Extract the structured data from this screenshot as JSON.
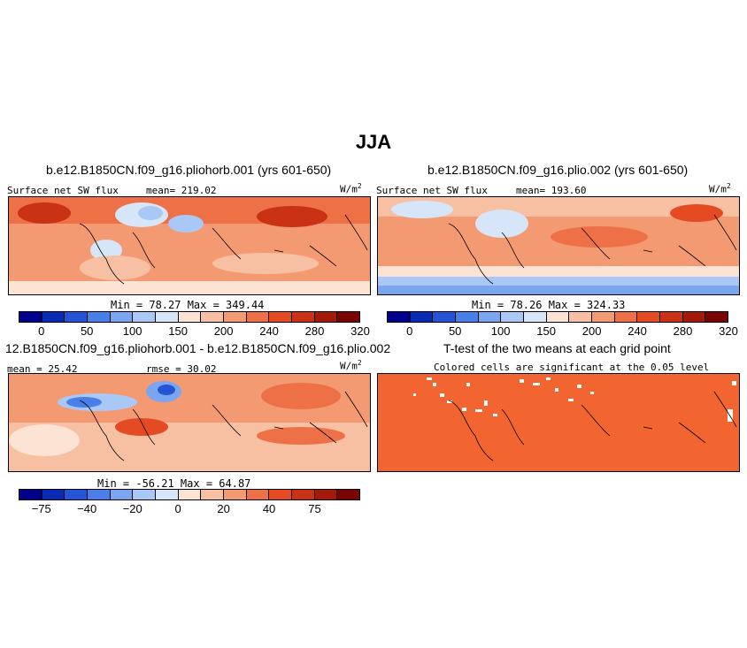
{
  "figure": {
    "title": "JJA"
  },
  "panels": {
    "p1": {
      "title": "b.e12.B1850CN.f09_g16.pliohorb.001 (yrs 601-650)",
      "variable": "Surface net SW flux",
      "stat": "mean= 219.02",
      "units": "W/m",
      "units_exp": "2",
      "minmax": "Min =  78.27  Max = 349.44"
    },
    "p2": {
      "title": "b.e12.B1850CN.f09_g16.plio.002 (yrs 601-650)",
      "variable": "Surface net SW flux",
      "stat": "mean= 193.60",
      "units": "W/m",
      "units_exp": "2",
      "minmax": "Min =  78.26  Max = 324.33"
    },
    "p3": {
      "title": "12.B1850CN.f09_g16.pliohorb.001 - b.e12.B1850CN.f09_g16.plio.002",
      "stat_left": "mean =  25.42",
      "stat_right": "rmse =  30.02",
      "units": "W/m",
      "units_exp": "2",
      "minmax": "Min = -56.21  Max =  64.87"
    },
    "p4": {
      "title": "T-test of the two means at each grid point",
      "subtitle": "Colored cells are significant at the 0.05 level"
    }
  },
  "colorbars": {
    "abs_colors": [
      "#00008b",
      "#0a2cb5",
      "#2555d6",
      "#4a7ee8",
      "#7aa5f0",
      "#a9c8f5",
      "#d6e6f8",
      "#fde3d3",
      "#f8c0a2",
      "#f39a73",
      "#ee7046",
      "#e54b22",
      "#c93215",
      "#a31a0a",
      "#7a0403"
    ],
    "abs_ticks": [
      "0",
      "50",
      "100",
      "150",
      "200",
      "240",
      "280",
      "320"
    ],
    "diff_colors": [
      "#00008b",
      "#0a2cb5",
      "#2555d6",
      "#4a7ee8",
      "#7aa5f0",
      "#a9c8f5",
      "#d6e6f8",
      "#fde3d3",
      "#f8c0a2",
      "#f39a73",
      "#ee7046",
      "#e54b22",
      "#c93215",
      "#a31a0a",
      "#7a0403"
    ],
    "diff_ticks": [
      "−75",
      "−40",
      "−20",
      "0",
      "20",
      "40",
      "75"
    ]
  },
  "colors": {
    "ttest_fill": "#f26530",
    "map_base": "#f6a27c",
    "coast": "#000000"
  }
}
